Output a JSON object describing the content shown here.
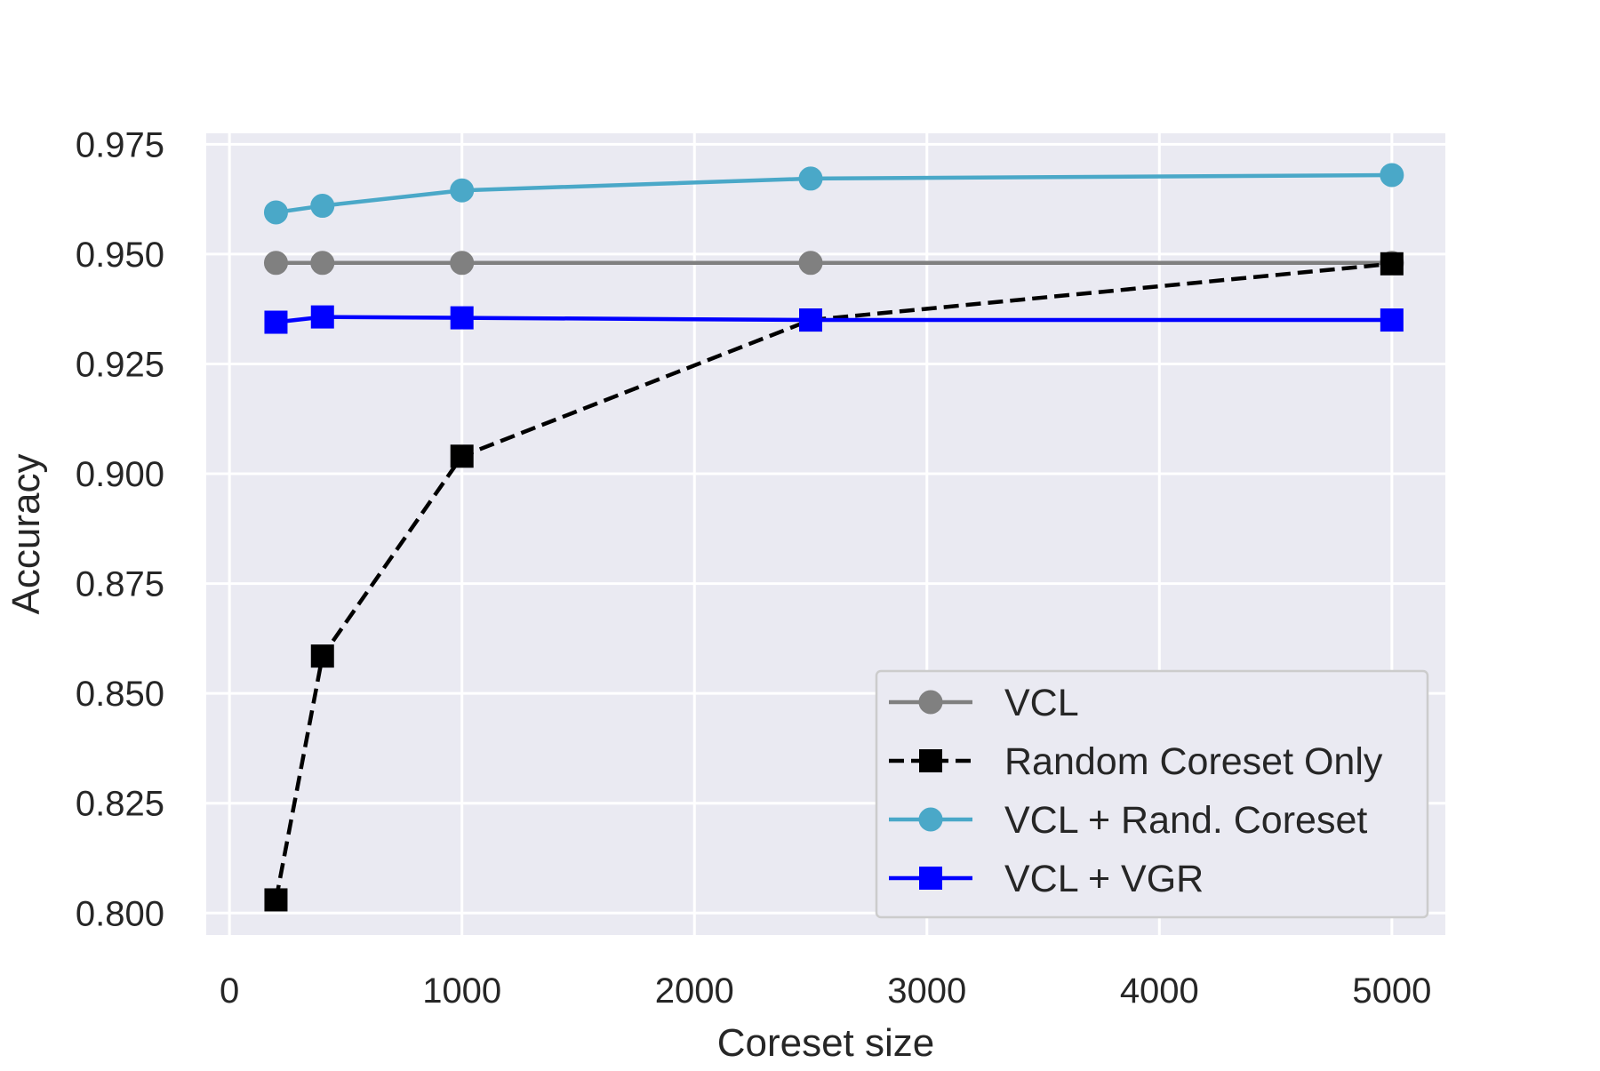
{
  "chart_data": {
    "type": "line",
    "title": "",
    "xlabel": "Coreset size",
    "ylabel": "Accuracy",
    "xlim": [
      -100,
      5230
    ],
    "ylim": [
      0.795,
      0.9775
    ],
    "xticks": [
      0,
      1000,
      2000,
      3000,
      4000,
      5000
    ],
    "xtick_labels": [
      "0",
      "1000",
      "2000",
      "3000",
      "4000",
      "5000"
    ],
    "yticks": [
      0.8,
      0.825,
      0.85,
      0.875,
      0.9,
      0.925,
      0.95,
      0.975
    ],
    "ytick_labels": [
      "0.800",
      "0.825",
      "0.850",
      "0.875",
      "0.900",
      "0.925",
      "0.950",
      "0.975"
    ],
    "grid": true,
    "background": "#eaeaf2",
    "legend_position": "lower-right",
    "x": [
      200,
      400,
      1000,
      2500,
      5000
    ],
    "series": [
      {
        "name": "VCL",
        "values": [
          0.948,
          0.948,
          0.948,
          0.948,
          0.948
        ],
        "color": "#808080",
        "marker": "circle",
        "dash": "solid"
      },
      {
        "name": "Random Coreset Only",
        "values": [
          0.803,
          0.8585,
          0.904,
          0.935,
          0.9478
        ],
        "color": "#000000",
        "marker": "square",
        "dash": "dashed"
      },
      {
        "name": "VCL + Rand. Coreset",
        "values": [
          0.9595,
          0.961,
          0.9645,
          0.9672,
          0.968
        ],
        "color": "#4aa8c8",
        "marker": "circle",
        "dash": "solid"
      },
      {
        "name": "VCL + VGR",
        "values": [
          0.9345,
          0.9357,
          0.9355,
          0.935,
          0.935
        ],
        "color": "#0000ff",
        "marker": "square",
        "dash": "solid"
      }
    ]
  }
}
